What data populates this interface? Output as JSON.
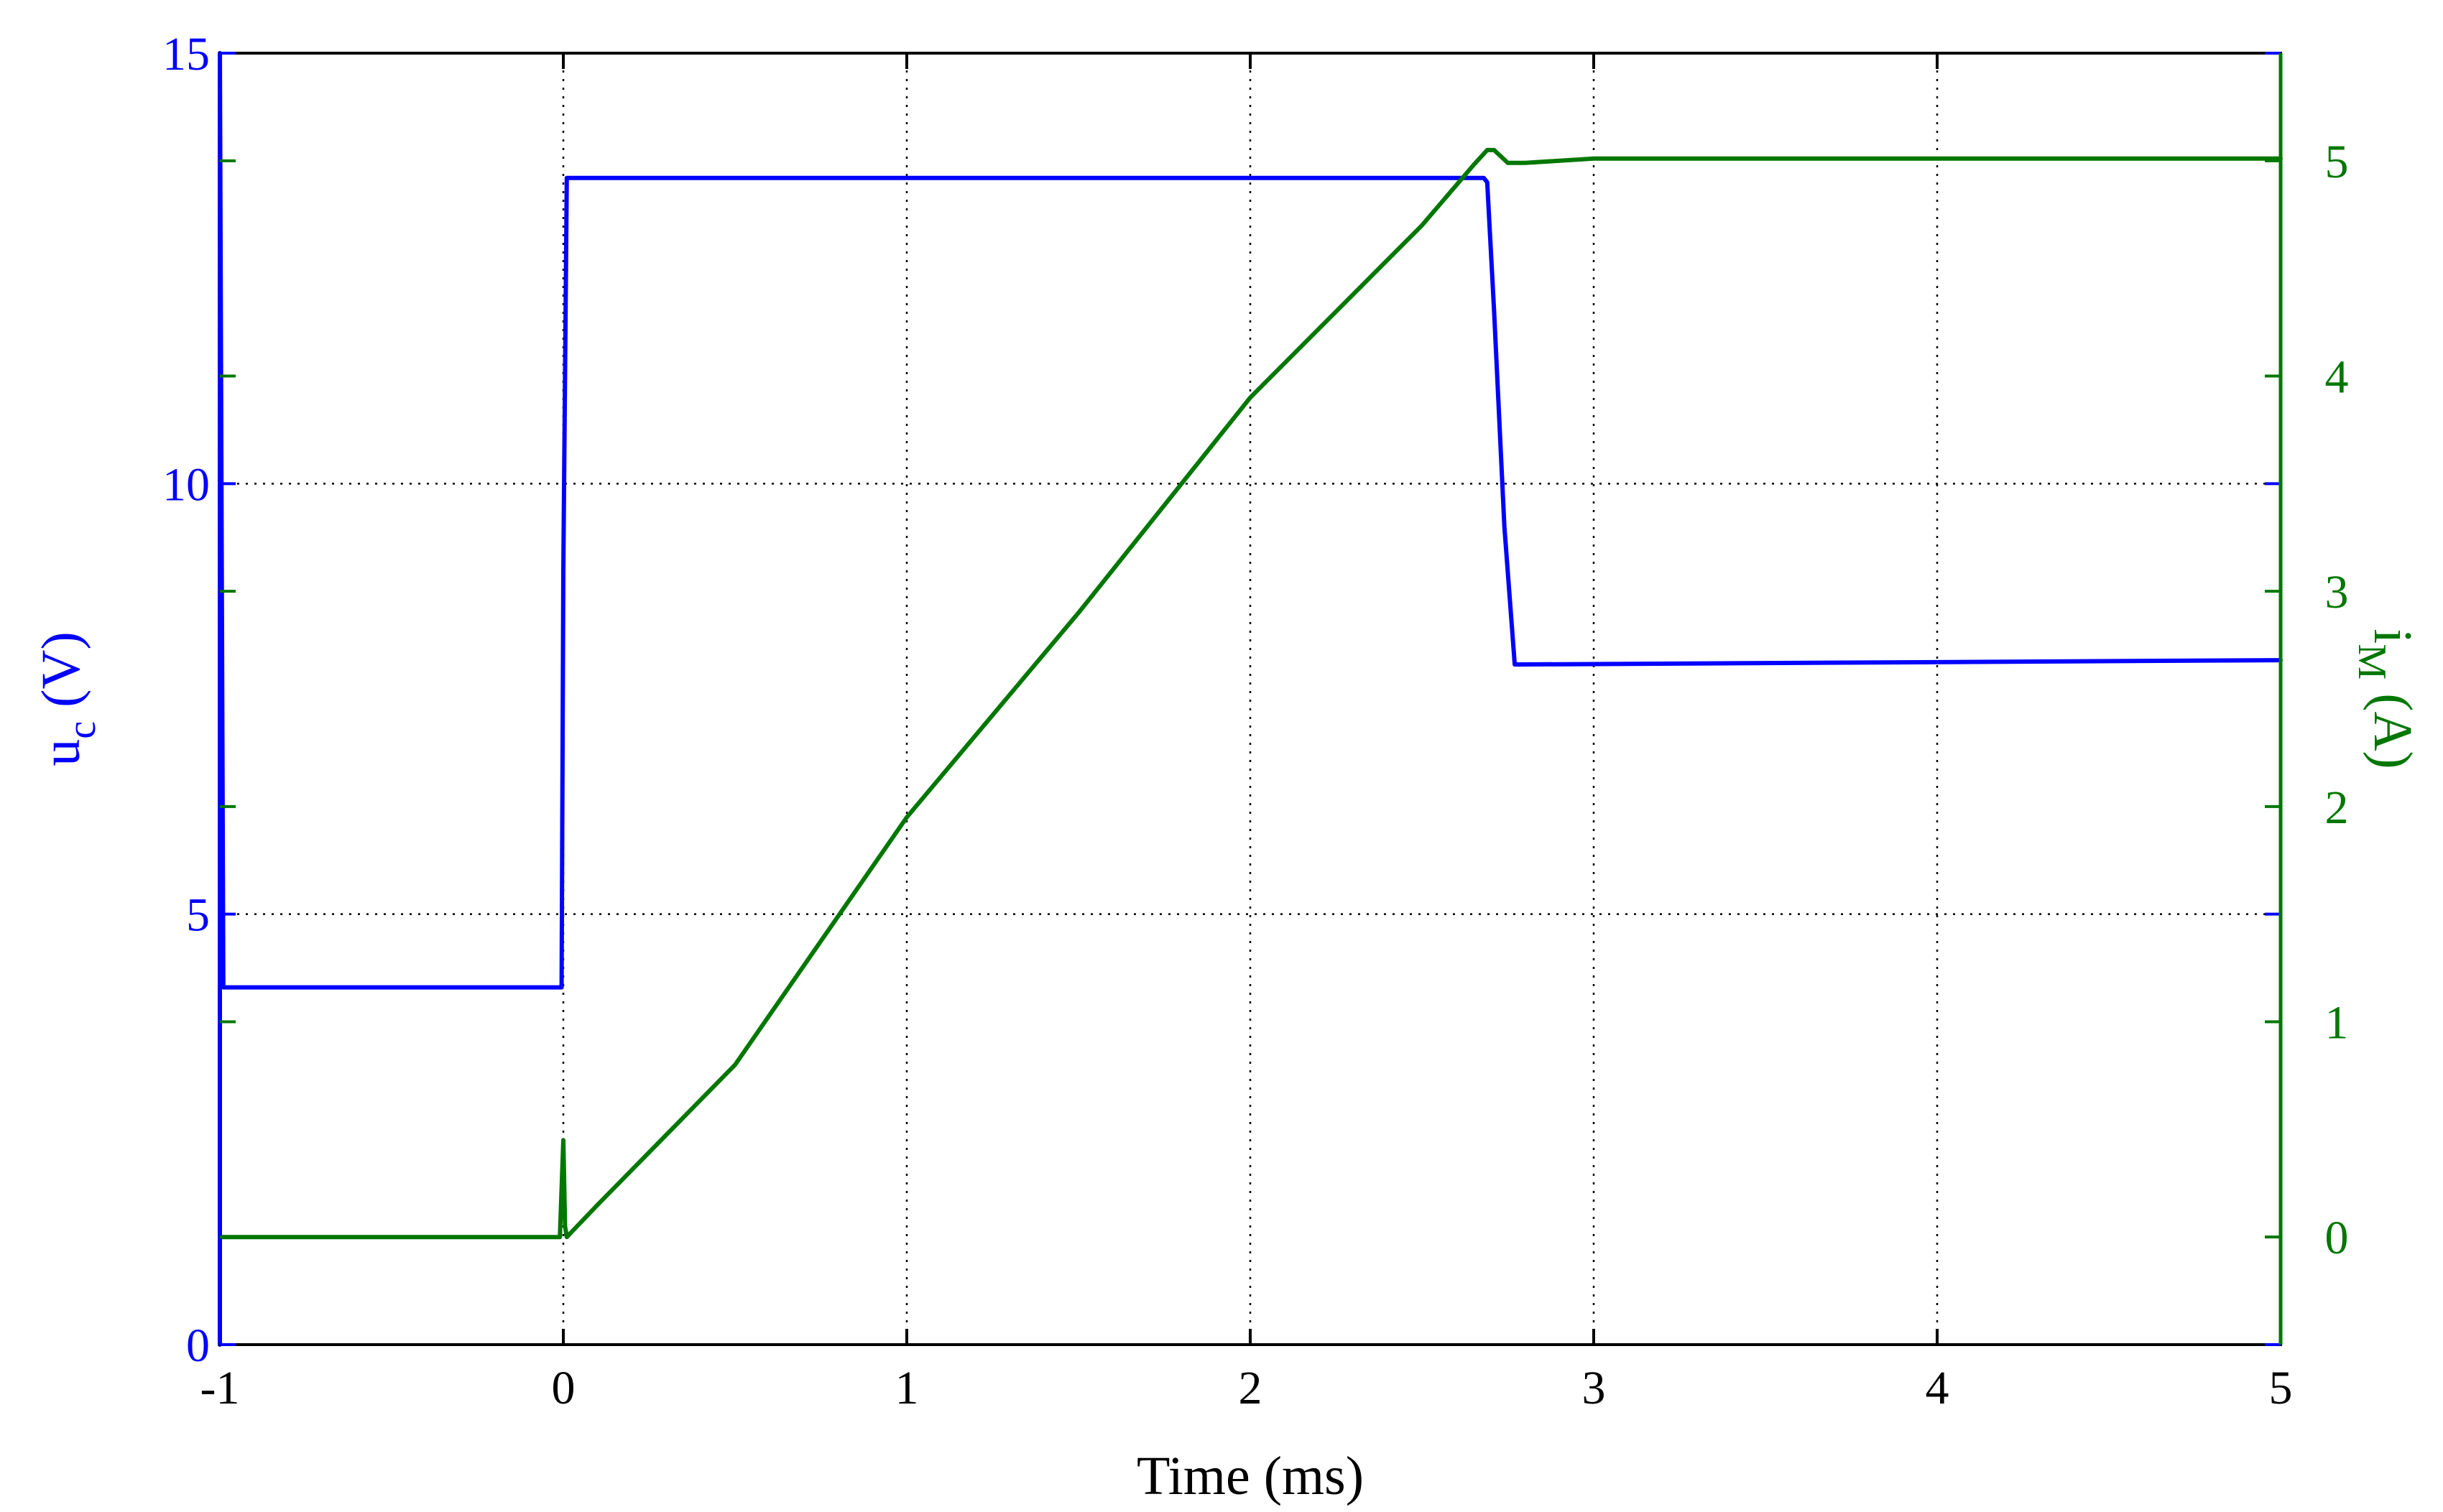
{
  "chart_data": {
    "type": "line",
    "xlabel": "Time (ms)",
    "x_ticks": [
      "-1",
      "0",
      "1",
      "2",
      "3",
      "4",
      "5"
    ],
    "xlim": [
      -1,
      5
    ],
    "grid": true,
    "left_axis": {
      "label_main": "u",
      "label_sub": "c",
      "label_unit": " (V)",
      "ylim": [
        0,
        15
      ],
      "ticks": [
        "0",
        "5",
        "10",
        "15"
      ],
      "color": "#0000ff"
    },
    "right_axis": {
      "label_main": "i",
      "label_sub": "M",
      "label_unit": " (A)",
      "ylim": [
        -0.5,
        5.5
      ],
      "ticks": [
        "0",
        "1",
        "2",
        "3",
        "4",
        "5"
      ],
      "color": "#007700"
    },
    "series": [
      {
        "axis": "left",
        "color": "#0000ff",
        "x": [
          -1.0,
          -1.0,
          -0.99,
          -0.01,
          -0.005,
          0.0,
          0.01,
          2.68,
          2.69,
          2.71,
          2.74,
          2.77,
          5.0
        ],
        "y": [
          0.0,
          15.0,
          4.15,
          4.15,
          4.15,
          9.0,
          13.55,
          13.55,
          13.5,
          12.0,
          9.5,
          7.9,
          7.95
        ]
      },
      {
        "axis": "right",
        "color": "#007700",
        "x": [
          -1.0,
          -0.01,
          0.0,
          0.005,
          0.01,
          0.1,
          0.5,
          1.0,
          1.5,
          2.0,
          2.5,
          2.65,
          2.69,
          2.71,
          2.75,
          2.8,
          3.0,
          5.0
        ],
        "y": [
          0.0,
          0.0,
          0.45,
          0.05,
          0.0,
          0.15,
          0.8,
          1.95,
          2.9,
          3.9,
          4.7,
          4.98,
          5.05,
          5.05,
          4.99,
          4.99,
          5.01,
          5.01
        ]
      }
    ]
  }
}
